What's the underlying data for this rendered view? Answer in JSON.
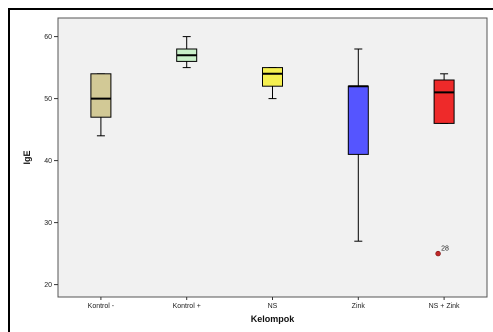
{
  "chart_data": {
    "type": "boxplot",
    "xlabel": "Kelompok",
    "ylabel": "IgE",
    "ylim": [
      18,
      63
    ],
    "yticks": [
      20,
      30,
      40,
      50,
      60
    ],
    "grid": false,
    "background": "#f1f1f1",
    "categories": [
      "Kontrol -",
      "Kontrol +",
      "NS",
      "Zink",
      "NS + Zink"
    ],
    "boxes": [
      {
        "min": 44,
        "q1": 47,
        "median": 50,
        "q3": 54,
        "max": 54,
        "color": "#d2c996"
      },
      {
        "min": 55,
        "q1": 56,
        "median": 57,
        "q3": 58,
        "max": 60,
        "color": "#c9f0c9"
      },
      {
        "min": 50,
        "q1": 52,
        "median": 54,
        "q3": 55,
        "max": 55,
        "color": "#f5f050"
      },
      {
        "min": 27,
        "q1": 41,
        "median": 52,
        "q3": 52,
        "max": 58,
        "color": "#5555ff"
      },
      {
        "min": 46,
        "q1": 46,
        "median": 51,
        "q3": 53,
        "max": 54,
        "color": "#ee2a2a"
      }
    ],
    "outliers": [
      {
        "category": "NS + Zink",
        "value": 25,
        "label": "28",
        "color": "#c02828"
      }
    ]
  }
}
